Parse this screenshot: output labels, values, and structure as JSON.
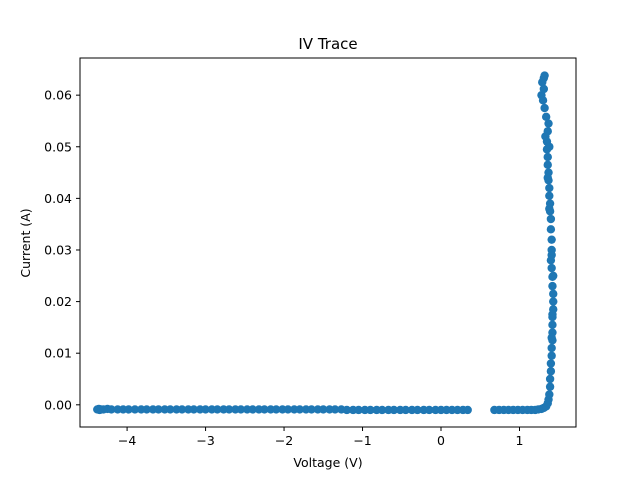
{
  "chart_data": {
    "type": "scatter",
    "title": "IV Trace",
    "xlabel": "Voltage (V)",
    "ylabel": "Current (A)",
    "xlim": [
      -4.6,
      1.72
    ],
    "ylim": [
      -0.0043,
      0.0672
    ],
    "grid": false,
    "legend": "none",
    "marker_color": "#1f77b4",
    "x_ticks": [
      -4,
      -3,
      -2,
      -1,
      0,
      1
    ],
    "x_tick_labels": [
      "−4",
      "−3",
      "−2",
      "−1",
      "0",
      "1"
    ],
    "y_ticks": [
      0.0,
      0.01,
      0.02,
      0.03,
      0.04,
      0.05,
      0.06
    ],
    "y_tick_labels": [
      "0.00",
      "0.01",
      "0.02",
      "0.03",
      "0.04",
      "0.05",
      "0.06"
    ],
    "series": [
      {
        "name": "IV",
        "points": [
          [
            -4.38,
            -0.0009
          ],
          [
            -4.36,
            -0.0008
          ],
          [
            -4.35,
            -0.001
          ],
          [
            -4.33,
            -0.0009
          ],
          [
            -4.3,
            -0.0009
          ],
          [
            -4.25,
            -0.0008
          ],
          [
            -4.2,
            -0.0009
          ],
          [
            -4.12,
            -0.0009
          ],
          [
            -4.05,
            -0.0009
          ],
          [
            -3.98,
            -0.0009
          ],
          [
            -3.9,
            -0.0009
          ],
          [
            -3.82,
            -0.0009
          ],
          [
            -3.75,
            -0.0009
          ],
          [
            -3.67,
            -0.0009
          ],
          [
            -3.6,
            -0.0009
          ],
          [
            -3.52,
            -0.0009
          ],
          [
            -3.45,
            -0.0009
          ],
          [
            -3.37,
            -0.0009
          ],
          [
            -3.3,
            -0.0009
          ],
          [
            -3.22,
            -0.0009
          ],
          [
            -3.15,
            -0.0009
          ],
          [
            -3.07,
            -0.0009
          ],
          [
            -3.0,
            -0.0009
          ],
          [
            -2.92,
            -0.0009
          ],
          [
            -2.85,
            -0.0009
          ],
          [
            -2.77,
            -0.0009
          ],
          [
            -2.7,
            -0.0009
          ],
          [
            -2.62,
            -0.0009
          ],
          [
            -2.55,
            -0.0009
          ],
          [
            -2.47,
            -0.0009
          ],
          [
            -2.4,
            -0.0009
          ],
          [
            -2.32,
            -0.0009
          ],
          [
            -2.25,
            -0.0009
          ],
          [
            -2.17,
            -0.0009
          ],
          [
            -2.1,
            -0.0009
          ],
          [
            -2.02,
            -0.0009
          ],
          [
            -1.95,
            -0.0009
          ],
          [
            -1.87,
            -0.0009
          ],
          [
            -1.8,
            -0.0009
          ],
          [
            -1.72,
            -0.0009
          ],
          [
            -1.65,
            -0.0009
          ],
          [
            -1.57,
            -0.0009
          ],
          [
            -1.5,
            -0.0009
          ],
          [
            -1.42,
            -0.0009
          ],
          [
            -1.35,
            -0.0009
          ],
          [
            -1.27,
            -0.0009
          ],
          [
            -1.2,
            -0.001
          ],
          [
            -1.12,
            -0.001
          ],
          [
            -1.05,
            -0.001
          ],
          [
            -0.97,
            -0.001
          ],
          [
            -0.9,
            -0.001
          ],
          [
            -0.82,
            -0.001
          ],
          [
            -0.75,
            -0.001
          ],
          [
            -0.67,
            -0.001
          ],
          [
            -0.6,
            -0.001
          ],
          [
            -0.52,
            -0.001
          ],
          [
            -0.45,
            -0.001
          ],
          [
            -0.37,
            -0.001
          ],
          [
            -0.3,
            -0.001
          ],
          [
            -0.22,
            -0.001
          ],
          [
            -0.15,
            -0.001
          ],
          [
            -0.07,
            -0.001
          ],
          [
            0.0,
            -0.001
          ],
          [
            0.07,
            -0.001
          ],
          [
            0.14,
            -0.001
          ],
          [
            0.21,
            -0.001
          ],
          [
            0.28,
            -0.001
          ],
          [
            0.34,
            -0.001
          ],
          [
            0.68,
            -0.001
          ],
          [
            0.74,
            -0.001
          ],
          [
            0.8,
            -0.001
          ],
          [
            0.86,
            -0.001
          ],
          [
            0.92,
            -0.001
          ],
          [
            0.98,
            -0.001
          ],
          [
            1.04,
            -0.001
          ],
          [
            1.1,
            -0.001
          ],
          [
            1.15,
            -0.001
          ],
          [
            1.2,
            -0.001
          ],
          [
            1.24,
            -0.0009
          ],
          [
            1.28,
            -0.0008
          ],
          [
            1.31,
            -0.0006
          ],
          [
            1.34,
            -0.0003
          ],
          [
            1.36,
            0.0003
          ],
          [
            1.37,
            0.001
          ],
          [
            1.38,
            0.002
          ],
          [
            1.39,
            0.0035
          ],
          [
            1.39,
            0.005
          ],
          [
            1.4,
            0.0065
          ],
          [
            1.4,
            0.008
          ],
          [
            1.41,
            0.0095
          ],
          [
            1.41,
            0.011
          ],
          [
            1.42,
            0.0125
          ],
          [
            1.42,
            0.014
          ],
          [
            1.42,
            0.0155
          ],
          [
            1.42,
            0.017
          ],
          [
            1.43,
            0.0185
          ],
          [
            1.43,
            0.02
          ],
          [
            1.43,
            0.0215
          ],
          [
            1.42,
            0.023
          ],
          [
            1.42,
            0.0248
          ],
          [
            1.41,
            0.0265
          ],
          [
            1.4,
            0.028
          ],
          [
            1.41,
            0.03
          ],
          [
            1.41,
            0.032
          ],
          [
            1.4,
            0.034
          ],
          [
            1.4,
            0.036
          ],
          [
            1.39,
            0.0375
          ],
          [
            1.39,
            0.039
          ],
          [
            1.38,
            0.0405
          ],
          [
            1.38,
            0.042
          ],
          [
            1.37,
            0.0435
          ],
          [
            1.37,
            0.045
          ],
          [
            1.36,
            0.0465
          ],
          [
            1.36,
            0.048
          ],
          [
            1.35,
            0.0495
          ],
          [
            1.35,
            0.051
          ],
          [
            1.36,
            0.053
          ],
          [
            1.37,
            0.0545
          ],
          [
            1.34,
            0.0558
          ],
          [
            1.32,
            0.0575
          ],
          [
            1.3,
            0.059
          ],
          [
            1.28,
            0.06
          ],
          [
            1.31,
            0.0612
          ],
          [
            1.29,
            0.0625
          ],
          [
            1.31,
            0.0633
          ],
          [
            1.32,
            0.0638
          ],
          [
            1.33,
            0.052
          ],
          [
            1.38,
            0.05
          ],
          [
            1.36,
            0.044
          ],
          [
            1.38,
            0.038
          ],
          [
            1.41,
            0.029
          ],
          [
            1.43,
            0.025
          ],
          [
            1.42,
            0.0175
          ],
          [
            1.41,
            0.013
          ]
        ]
      }
    ]
  }
}
